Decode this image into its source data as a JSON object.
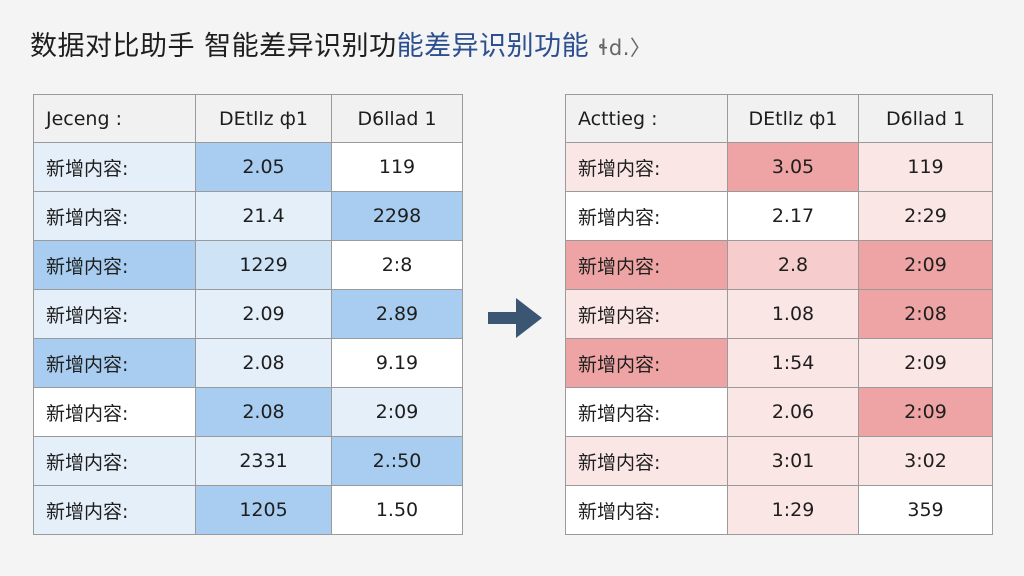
{
  "title": {
    "main": "数据对比助手 智能差异识别功",
    "highlight": "能差异识别功能",
    "note": "ɬd.〉"
  },
  "left_table": {
    "headers": [
      "Jeceng :",
      "DEtllz ф1",
      "D6llad 1"
    ],
    "rows": [
      {
        "label": "新增内容:",
        "v1": "2.05",
        "v2": "119"
      },
      {
        "label": "新增内容:",
        "v1": "21.4",
        "v2": "2298"
      },
      {
        "label": "新增内容:",
        "v1": "1229",
        "v2": "2:8"
      },
      {
        "label": "新增内容:",
        "v1": "2.09",
        "v2": "2.89"
      },
      {
        "label": "新增内容:",
        "v1": "2.08",
        "v2": "9.19"
      },
      {
        "label": "新增内容:",
        "v1": "2.08",
        "v2": "2:09"
      },
      {
        "label": "新增内容:",
        "v1": "2331",
        "v2": "2.:50"
      },
      {
        "label": "新增内容:",
        "v1": "1205",
        "v2": "1.50"
      }
    ]
  },
  "right_table": {
    "headers": [
      "Acttieg :",
      "DEtllz ф1",
      "D6llad 1"
    ],
    "rows": [
      {
        "label": "新增内容:",
        "v1": "3.05",
        "v2": "119"
      },
      {
        "label": "新增内容:",
        "v1": "2.17",
        "v2": "2:29"
      },
      {
        "label": "新增内容:",
        "v1": "2.8",
        "v2": "2:09"
      },
      {
        "label": "新增内容:",
        "v1": "1.08",
        "v2": "2:08"
      },
      {
        "label": "新增内容:",
        "v1": "1:54",
        "v2": "2:09"
      },
      {
        "label": "新增内容:",
        "v1": "2.06",
        "v2": "2:09"
      },
      {
        "label": "新增内容:",
        "v1": "3:01",
        "v2": "3:02"
      },
      {
        "label": "新增内容:",
        "v1": "1:29",
        "v2": "359"
      }
    ]
  },
  "arrow_icon": "arrow-right-icon",
  "colors": {
    "arrow": "#3b5673",
    "blue_highlight": "#a8cdf0",
    "red_highlight": "#eea4a4"
  }
}
